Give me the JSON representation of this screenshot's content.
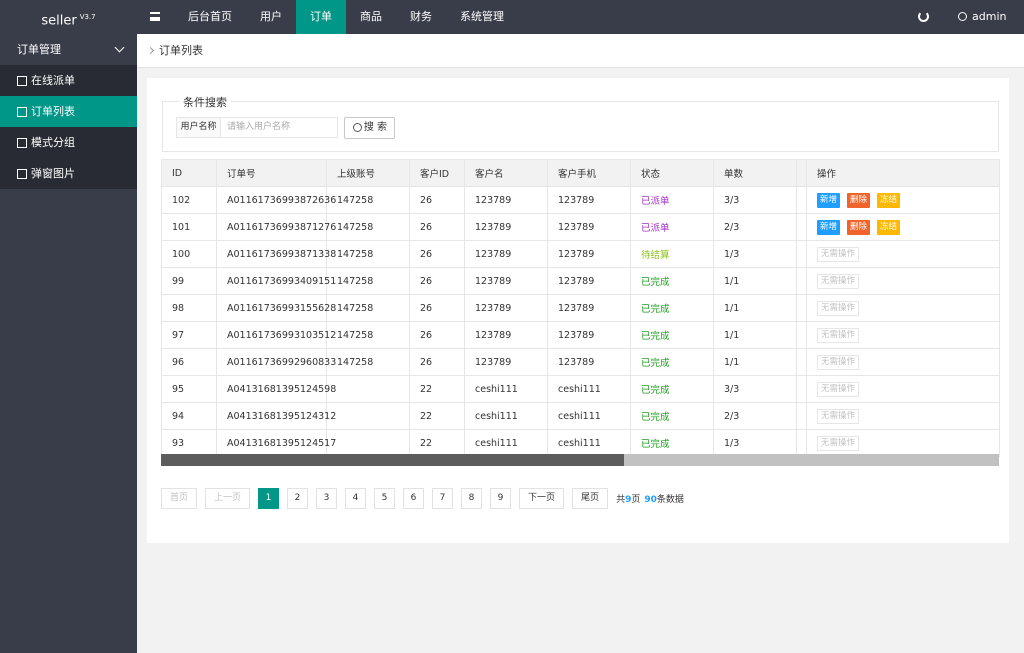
{
  "brand": {
    "name": "seller",
    "version": "V3.7"
  },
  "topnav": {
    "items": [
      "后台首页",
      "用户",
      "订单",
      "商品",
      "财务",
      "系统管理"
    ],
    "active": 2
  },
  "user": "admin",
  "sidebar": {
    "group": "订单管理",
    "items": [
      "在线派单",
      "订单列表",
      "模式分组",
      "弹窗图片"
    ],
    "active": 1
  },
  "breadcrumb": "订单列表",
  "search": {
    "legend": "条件搜索",
    "label": "用户名称",
    "placeholder": "请输入用户名称",
    "button": "搜 索"
  },
  "table": {
    "headers": [
      "ID",
      "订单号",
      "上级账号",
      "客户ID",
      "客户名",
      "客户手机",
      "状态",
      "单数",
      "操作"
    ],
    "rows": [
      {
        "id": 102,
        "order_no": "A01161736993872636",
        "parent": "147258",
        "customer_id": 26,
        "name": "123789",
        "phone": "123789",
        "status": "已派单",
        "status_color": "#a233c6",
        "count": "3/3",
        "actions": [
          "新增",
          "删除",
          "冻结"
        ]
      },
      {
        "id": 101,
        "order_no": "A01161736993871276",
        "parent": "147258",
        "customer_id": 26,
        "name": "123789",
        "phone": "123789",
        "status": "已派单",
        "status_color": "#a233c6",
        "count": "2/3",
        "actions": [
          "新增",
          "删除",
          "冻结"
        ]
      },
      {
        "id": 100,
        "order_no": "A01161736993871338",
        "parent": "147258",
        "customer_id": 26,
        "name": "123789",
        "phone": "123789",
        "status": "待结算",
        "status_color": "#8dc21f",
        "count": "1/3",
        "note": "无需操作"
      },
      {
        "id": 99,
        "order_no": "A01161736993409151",
        "parent": "147258",
        "customer_id": 26,
        "name": "123789",
        "phone": "123789",
        "status": "已完成",
        "status_color": "#1e9e1e",
        "count": "1/1",
        "note": "无需操作"
      },
      {
        "id": 98,
        "order_no": "A01161736993155628",
        "parent": "147258",
        "customer_id": 26,
        "name": "123789",
        "phone": "123789",
        "status": "已完成",
        "status_color": "#1e9e1e",
        "count": "1/1",
        "note": "无需操作"
      },
      {
        "id": 97,
        "order_no": "A01161736993103512",
        "parent": "147258",
        "customer_id": 26,
        "name": "123789",
        "phone": "123789",
        "status": "已完成",
        "status_color": "#1e9e1e",
        "count": "1/1",
        "note": "无需操作"
      },
      {
        "id": 96,
        "order_no": "A01161736992960833",
        "parent": "147258",
        "customer_id": 26,
        "name": "123789",
        "phone": "123789",
        "status": "已完成",
        "status_color": "#1e9e1e",
        "count": "1/1",
        "note": "无需操作"
      },
      {
        "id": 95,
        "order_no": "A04131681395124598",
        "parent": null,
        "customer_id": 22,
        "name": "ceshi111",
        "phone": "ceshi111",
        "status": "已完成",
        "status_color": "#1e9e1e",
        "count": "3/3",
        "note": "无需操作"
      },
      {
        "id": 94,
        "order_no": "A04131681395124312",
        "parent": null,
        "customer_id": 22,
        "name": "ceshi111",
        "phone": "ceshi111",
        "status": "已完成",
        "status_color": "#1e9e1e",
        "count": "2/3",
        "note": "无需操作"
      },
      {
        "id": 93,
        "order_no": "A04131681395124517",
        "parent": null,
        "customer_id": 22,
        "name": "ceshi111",
        "phone": "ceshi111",
        "status": "已完成",
        "status_color": "#1e9e1e",
        "count": "1/3",
        "note": "无需操作"
      }
    ]
  },
  "pagination": {
    "first": "首页",
    "prev": "上一页",
    "pages": [
      1,
      2,
      3,
      4,
      5,
      6,
      7,
      8,
      9
    ],
    "current": 0,
    "next": "下一页",
    "last": "尾页",
    "summary": {
      "prefix": "共",
      "pages": 9,
      "pages_unit": "页",
      "total": 90,
      "total_unit": "条数据"
    }
  }
}
